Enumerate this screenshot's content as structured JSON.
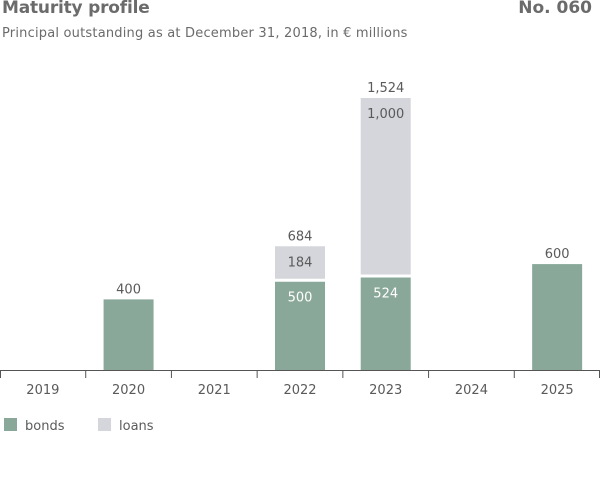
{
  "header": {
    "title": "Maturity profile",
    "figure_number": "No. 060",
    "subtitle": "Principal outstanding as at December 31, 2018, in € millions"
  },
  "colors": {
    "bonds": "#8aa899",
    "loans": "#d4d6db",
    "text": "#5a5a5a",
    "axis": "#555555"
  },
  "chart_data": {
    "type": "bar",
    "stacked": true,
    "title": "Maturity profile",
    "subtitle": "Principal outstanding as at December 31, 2018, in € millions",
    "categories": [
      "2019",
      "2020",
      "2021",
      "2022",
      "2023",
      "2024",
      "2025"
    ],
    "series": [
      {
        "name": "bonds",
        "values": [
          0,
          400,
          0,
          500,
          524,
          0,
          600
        ]
      },
      {
        "name": "loans",
        "values": [
          0,
          0,
          0,
          184,
          1000,
          0,
          0
        ]
      }
    ],
    "totals": [
      null,
      400,
      null,
      684,
      1524,
      null,
      600
    ],
    "ylim": [
      0,
      1524
    ],
    "grid": false,
    "legend_position": "bottom-left"
  },
  "legend": [
    {
      "label": "bonds",
      "color_key": "bonds"
    },
    {
      "label": "loans",
      "color_key": "loans"
    }
  ]
}
